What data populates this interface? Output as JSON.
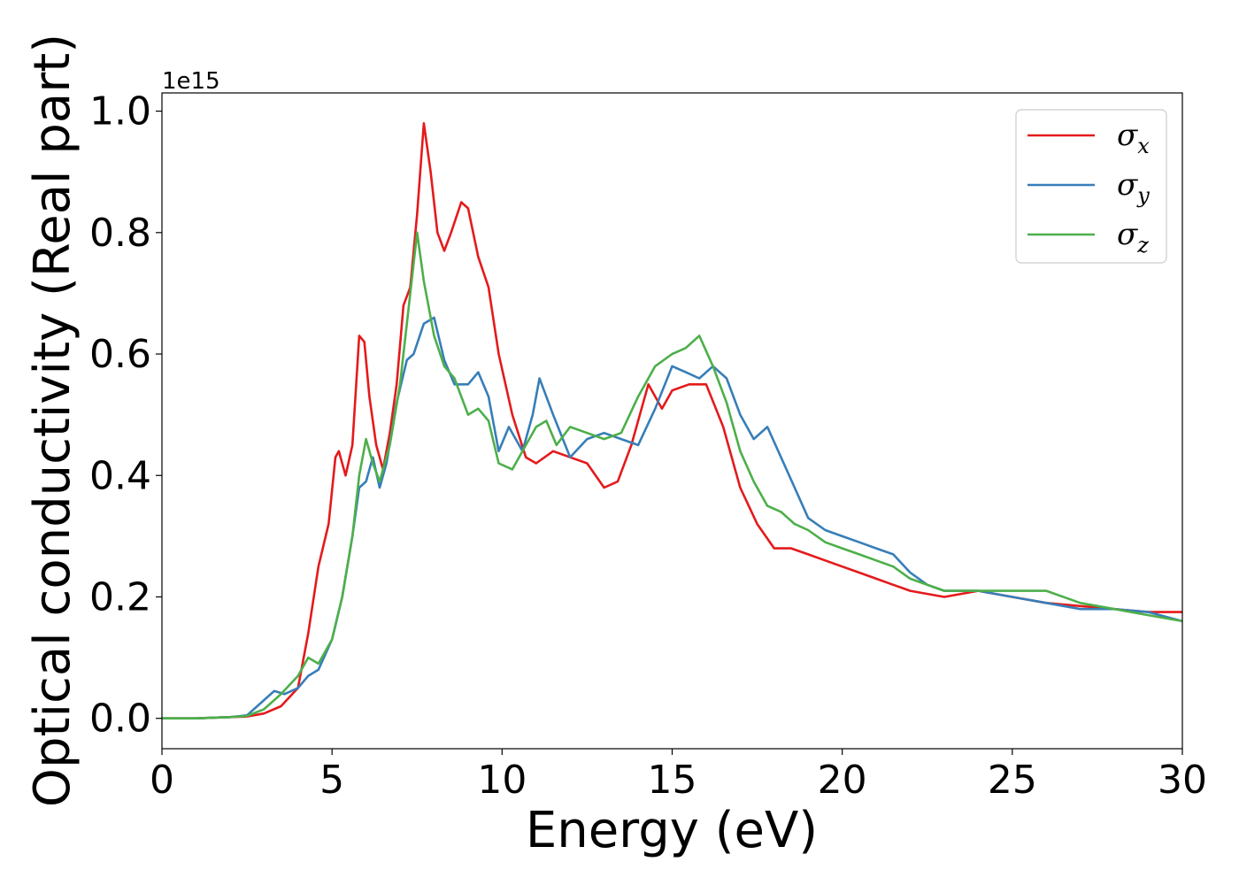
{
  "chart_data": {
    "type": "line",
    "title": "",
    "xlabel": "Energy (eV)",
    "ylabel": "Optical conductivity (Real part)",
    "y_offset_label": "1e15",
    "xlim": [
      0,
      30
    ],
    "ylim": [
      -0.05,
      1.03
    ],
    "xticks": [
      0,
      5,
      10,
      15,
      20,
      25,
      30
    ],
    "yticks": [
      0.0,
      0.2,
      0.4,
      0.6,
      0.8,
      1.0
    ],
    "ytick_labels": [
      "0.0",
      "0.2",
      "0.4",
      "0.6",
      "0.8",
      "1.0"
    ],
    "grid": false,
    "legend_position": "top-right",
    "series": [
      {
        "name": "σ_x",
        "legend_symbol": "σ",
        "legend_subscript": "x",
        "color": "#e41a1c",
        "points": [
          [
            0,
            0.0
          ],
          [
            1,
            0.0
          ],
          [
            2,
            0.002
          ],
          [
            2.5,
            0.003
          ],
          [
            3,
            0.008
          ],
          [
            3.5,
            0.02
          ],
          [
            4,
            0.05
          ],
          [
            4.3,
            0.14
          ],
          [
            4.6,
            0.25
          ],
          [
            4.9,
            0.32
          ],
          [
            5.1,
            0.43
          ],
          [
            5.2,
            0.44
          ],
          [
            5.4,
            0.4
          ],
          [
            5.6,
            0.45
          ],
          [
            5.8,
            0.63
          ],
          [
            5.95,
            0.62
          ],
          [
            6.1,
            0.53
          ],
          [
            6.3,
            0.45
          ],
          [
            6.5,
            0.41
          ],
          [
            6.7,
            0.47
          ],
          [
            6.9,
            0.55
          ],
          [
            7.1,
            0.68
          ],
          [
            7.3,
            0.71
          ],
          [
            7.5,
            0.83
          ],
          [
            7.7,
            0.98
          ],
          [
            7.9,
            0.9
          ],
          [
            8.1,
            0.8
          ],
          [
            8.3,
            0.77
          ],
          [
            8.5,
            0.8
          ],
          [
            8.8,
            0.85
          ],
          [
            9.0,
            0.84
          ],
          [
            9.3,
            0.76
          ],
          [
            9.6,
            0.71
          ],
          [
            9.9,
            0.6
          ],
          [
            10.3,
            0.5
          ],
          [
            10.7,
            0.43
          ],
          [
            11.0,
            0.42
          ],
          [
            11.5,
            0.44
          ],
          [
            12.0,
            0.43
          ],
          [
            12.5,
            0.42
          ],
          [
            13.0,
            0.38
          ],
          [
            13.4,
            0.39
          ],
          [
            13.8,
            0.45
          ],
          [
            14.3,
            0.55
          ],
          [
            14.7,
            0.51
          ],
          [
            15.0,
            0.54
          ],
          [
            15.5,
            0.55
          ],
          [
            16.0,
            0.55
          ],
          [
            16.5,
            0.48
          ],
          [
            17.0,
            0.38
          ],
          [
            17.5,
            0.32
          ],
          [
            18.0,
            0.28
          ],
          [
            18.5,
            0.28
          ],
          [
            19.0,
            0.27
          ],
          [
            19.5,
            0.26
          ],
          [
            20.0,
            0.25
          ],
          [
            20.5,
            0.24
          ],
          [
            21.0,
            0.23
          ],
          [
            21.5,
            0.22
          ],
          [
            22.0,
            0.21
          ],
          [
            23.0,
            0.2
          ],
          [
            24.0,
            0.21
          ],
          [
            25.0,
            0.2
          ],
          [
            26.0,
            0.19
          ],
          [
            27.0,
            0.185
          ],
          [
            28.0,
            0.18
          ],
          [
            29.0,
            0.175
          ],
          [
            30.0,
            0.175
          ]
        ]
      },
      {
        "name": "σ_y",
        "legend_symbol": "σ",
        "legend_subscript": "y",
        "color": "#377eb8",
        "points": [
          [
            0,
            0.0
          ],
          [
            1,
            0.0
          ],
          [
            2,
            0.002
          ],
          [
            2.5,
            0.005
          ],
          [
            2.8,
            0.02
          ],
          [
            3.0,
            0.03
          ],
          [
            3.3,
            0.045
          ],
          [
            3.6,
            0.04
          ],
          [
            4.0,
            0.05
          ],
          [
            4.3,
            0.07
          ],
          [
            4.6,
            0.08
          ],
          [
            5.0,
            0.13
          ],
          [
            5.3,
            0.2
          ],
          [
            5.6,
            0.3
          ],
          [
            5.8,
            0.38
          ],
          [
            6.0,
            0.39
          ],
          [
            6.2,
            0.43
          ],
          [
            6.4,
            0.38
          ],
          [
            6.6,
            0.42
          ],
          [
            6.9,
            0.52
          ],
          [
            7.2,
            0.59
          ],
          [
            7.4,
            0.6
          ],
          [
            7.7,
            0.65
          ],
          [
            8.0,
            0.66
          ],
          [
            8.3,
            0.59
          ],
          [
            8.6,
            0.55
          ],
          [
            9.0,
            0.55
          ],
          [
            9.3,
            0.57
          ],
          [
            9.6,
            0.53
          ],
          [
            9.9,
            0.44
          ],
          [
            10.2,
            0.48
          ],
          [
            10.6,
            0.44
          ],
          [
            10.9,
            0.5
          ],
          [
            11.1,
            0.56
          ],
          [
            11.5,
            0.5
          ],
          [
            12.0,
            0.43
          ],
          [
            12.5,
            0.46
          ],
          [
            13.0,
            0.47
          ],
          [
            13.5,
            0.46
          ],
          [
            14.0,
            0.45
          ],
          [
            14.5,
            0.51
          ],
          [
            15.0,
            0.58
          ],
          [
            15.4,
            0.57
          ],
          [
            15.8,
            0.56
          ],
          [
            16.2,
            0.58
          ],
          [
            16.6,
            0.56
          ],
          [
            17.0,
            0.5
          ],
          [
            17.4,
            0.46
          ],
          [
            17.8,
            0.48
          ],
          [
            18.2,
            0.43
          ],
          [
            18.6,
            0.38
          ],
          [
            19.0,
            0.33
          ],
          [
            19.5,
            0.31
          ],
          [
            20.0,
            0.3
          ],
          [
            20.5,
            0.29
          ],
          [
            21.0,
            0.28
          ],
          [
            21.5,
            0.27
          ],
          [
            22.0,
            0.24
          ],
          [
            22.5,
            0.22
          ],
          [
            23.0,
            0.21
          ],
          [
            24.0,
            0.21
          ],
          [
            25.0,
            0.2
          ],
          [
            26.0,
            0.19
          ],
          [
            27.0,
            0.18
          ],
          [
            28.0,
            0.18
          ],
          [
            29.0,
            0.175
          ],
          [
            30.0,
            0.16
          ]
        ]
      },
      {
        "name": "σ_z",
        "legend_symbol": "σ",
        "legend_subscript": "z",
        "color": "#4daf4a",
        "points": [
          [
            0,
            0.0
          ],
          [
            1,
            0.0
          ],
          [
            2,
            0.002
          ],
          [
            2.5,
            0.004
          ],
          [
            3.0,
            0.015
          ],
          [
            3.5,
            0.04
          ],
          [
            4.0,
            0.07
          ],
          [
            4.3,
            0.1
          ],
          [
            4.6,
            0.09
          ],
          [
            5.0,
            0.13
          ],
          [
            5.3,
            0.2
          ],
          [
            5.6,
            0.3
          ],
          [
            5.8,
            0.4
          ],
          [
            6.0,
            0.46
          ],
          [
            6.2,
            0.42
          ],
          [
            6.4,
            0.39
          ],
          [
            6.7,
            0.45
          ],
          [
            7.0,
            0.55
          ],
          [
            7.3,
            0.7
          ],
          [
            7.5,
            0.8
          ],
          [
            7.7,
            0.72
          ],
          [
            8.0,
            0.63
          ],
          [
            8.3,
            0.58
          ],
          [
            8.6,
            0.56
          ],
          [
            9.0,
            0.5
          ],
          [
            9.3,
            0.51
          ],
          [
            9.6,
            0.49
          ],
          [
            9.9,
            0.42
          ],
          [
            10.3,
            0.41
          ],
          [
            10.7,
            0.45
          ],
          [
            11.0,
            0.48
          ],
          [
            11.3,
            0.49
          ],
          [
            11.6,
            0.45
          ],
          [
            12.0,
            0.48
          ],
          [
            12.5,
            0.47
          ],
          [
            13.0,
            0.46
          ],
          [
            13.5,
            0.47
          ],
          [
            14.0,
            0.53
          ],
          [
            14.5,
            0.58
          ],
          [
            15.0,
            0.6
          ],
          [
            15.4,
            0.61
          ],
          [
            15.8,
            0.63
          ],
          [
            16.2,
            0.58
          ],
          [
            16.6,
            0.52
          ],
          [
            17.0,
            0.44
          ],
          [
            17.4,
            0.39
          ],
          [
            17.8,
            0.35
          ],
          [
            18.2,
            0.34
          ],
          [
            18.6,
            0.32
          ],
          [
            19.0,
            0.31
          ],
          [
            19.5,
            0.29
          ],
          [
            20.0,
            0.28
          ],
          [
            20.5,
            0.27
          ],
          [
            21.0,
            0.26
          ],
          [
            21.5,
            0.25
          ],
          [
            22.0,
            0.23
          ],
          [
            23.0,
            0.21
          ],
          [
            24.0,
            0.21
          ],
          [
            25.0,
            0.21
          ],
          [
            26.0,
            0.21
          ],
          [
            27.0,
            0.19
          ],
          [
            28.0,
            0.18
          ],
          [
            29.0,
            0.17
          ],
          [
            30.0,
            0.16
          ]
        ]
      }
    ]
  }
}
